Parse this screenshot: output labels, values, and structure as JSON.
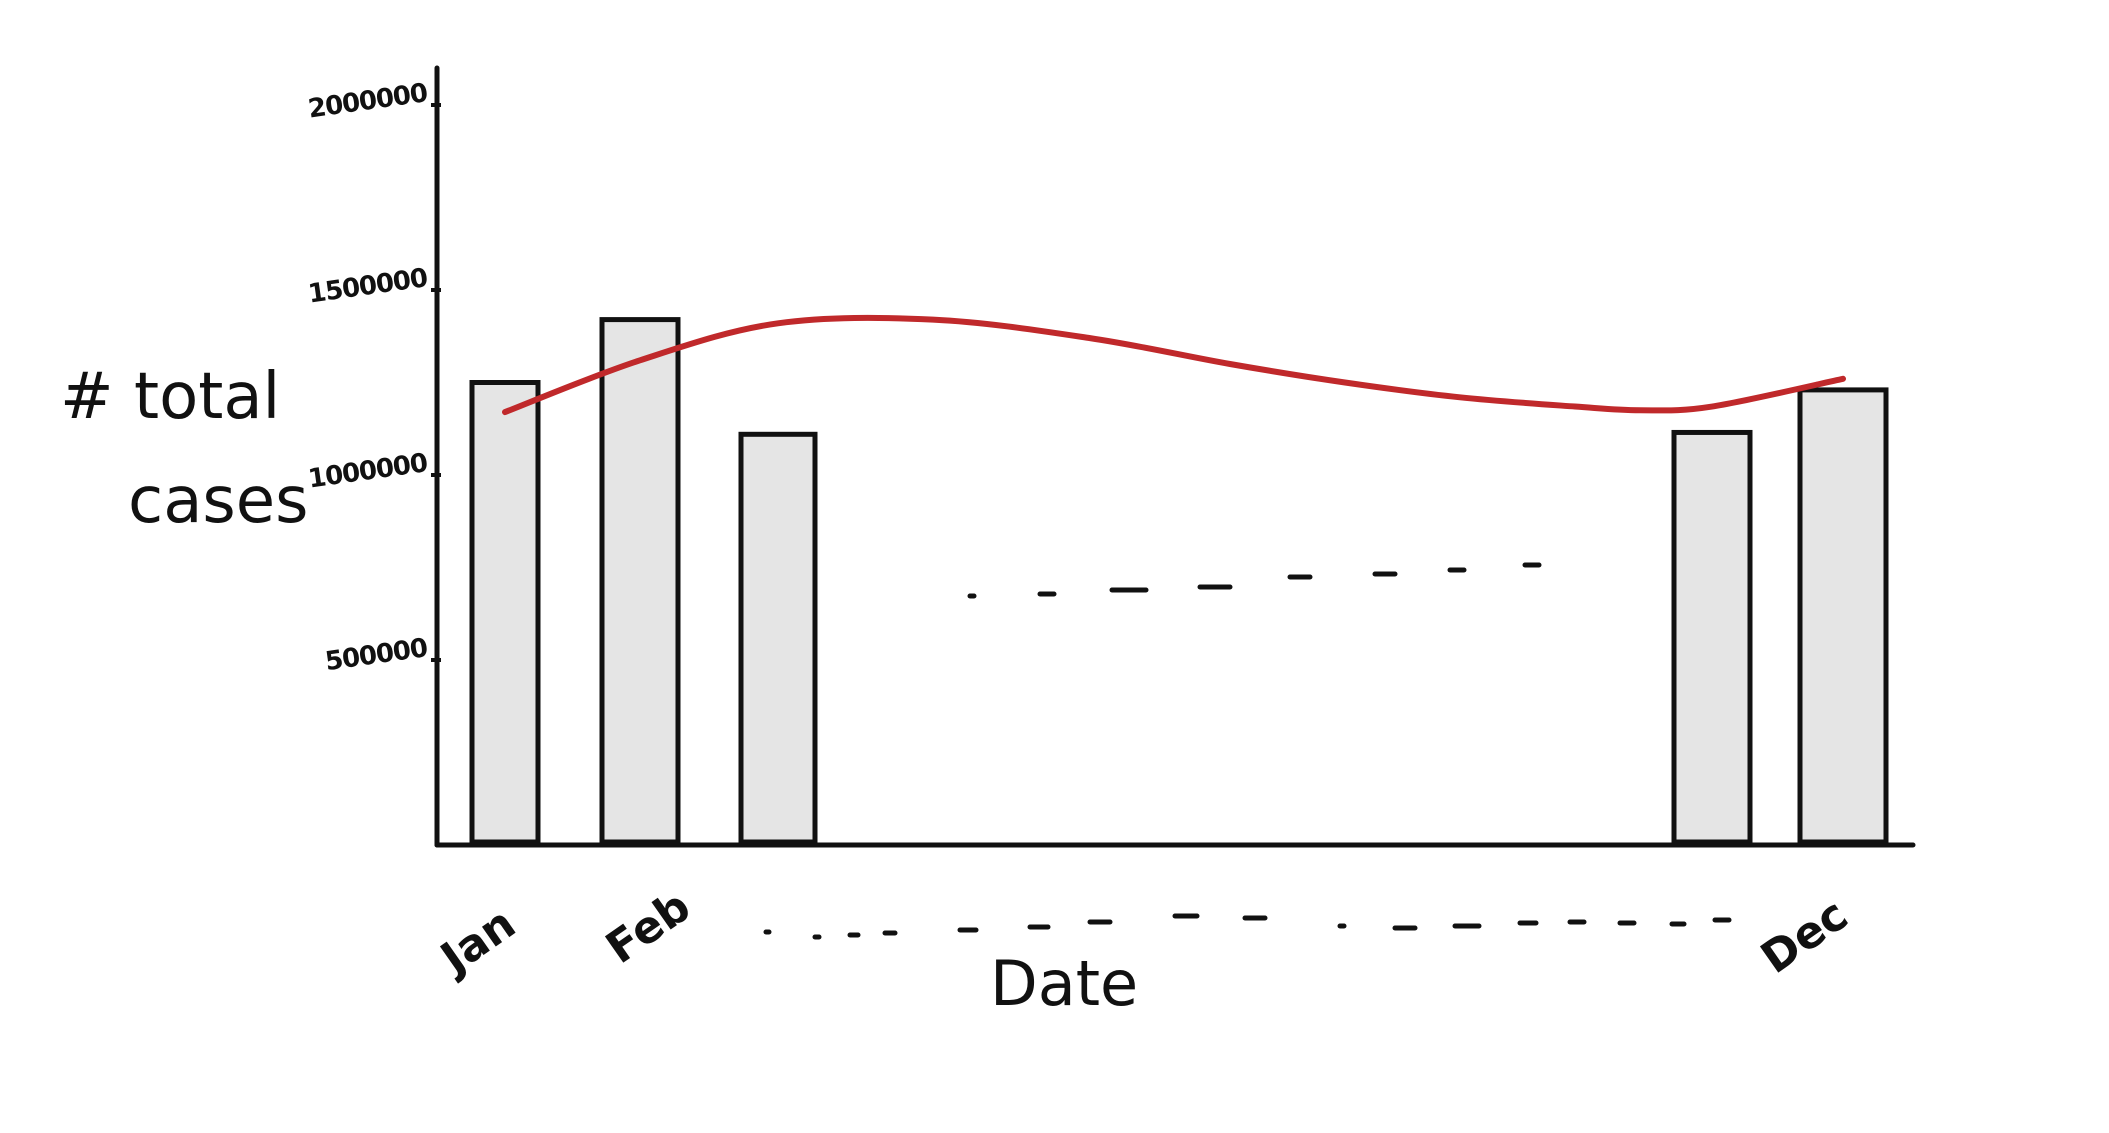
{
  "chart_data": {
    "type": "bar",
    "xlabel": "Date",
    "ylabel": "# total cases",
    "categories": [
      "Jan",
      "Feb",
      "",
      "",
      "",
      "",
      "",
      "",
      "",
      "",
      "",
      "Dec"
    ],
    "x_tick_labels": [
      "Jan",
      "Feb",
      "Dec"
    ],
    "ylim": [
      0,
      2150000
    ],
    "y_ticks": [
      500000,
      1000000,
      1500000,
      2000000
    ],
    "y_tick_labels": [
      "500000",
      "1000000",
      "1500000",
      "2000000"
    ],
    "series": [
      {
        "type": "bar",
        "values": [
          1250000,
          1420000,
          1110000,
          null,
          null,
          null,
          null,
          null,
          null,
          null,
          1115000,
          1230000
        ]
      },
      {
        "type": "line",
        "values": [
          1170000,
          1310000,
          1410000,
          1420000,
          1370000,
          1300000,
          1250000,
          1210000,
          1185000,
          1175000,
          1185000,
          1260000
        ]
      }
    ],
    "grid": false,
    "legend": false,
    "colors": {
      "bar_fill": "#e5e5e5",
      "bar_stroke": "#111111",
      "trend_line": "#c0292b",
      "axis": "#111111"
    }
  }
}
